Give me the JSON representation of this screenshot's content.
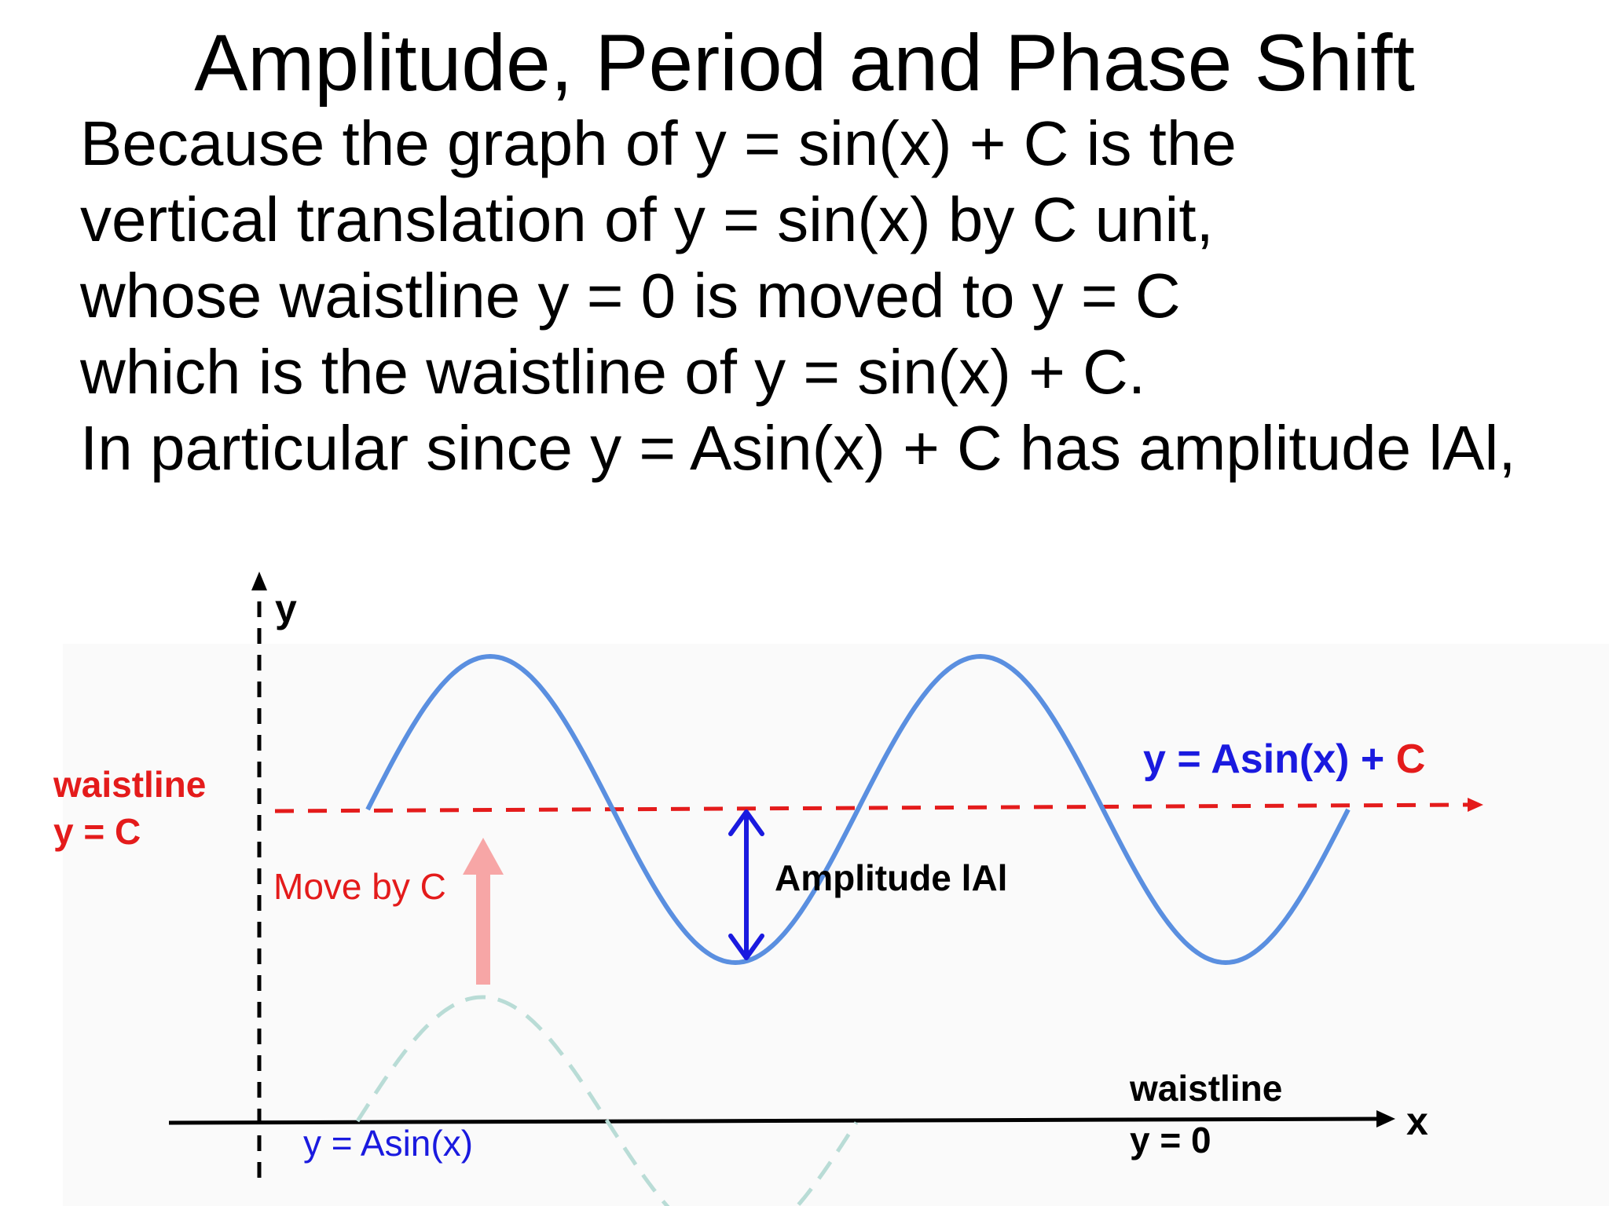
{
  "title": "Amplitude, Period and Phase Shift",
  "body_lines": [
    "Because the graph of y = sin(x) + C is the",
    "vertical translation of y = sin(x) by C unit,",
    "whose waistline y = 0 is moved to y = C",
    "which is the waistline of y = sin(x) + C.",
    "In particular since y = Asin(x) + C has amplitude lAl,"
  ],
  "diagram": {
    "y_axis_label": "y",
    "x_axis_label": "x",
    "waistline_c_line1": "waistline",
    "waistline_c_line2": "y = C",
    "move_label": "Move by C",
    "amplitude_label": "Amplitude lAl",
    "upper_curve_label_main": "y = Asin(x) + ",
    "upper_curve_label_c": "C",
    "lower_curve_label": "y = Asin(x)",
    "waistline_0_line1": "waistline",
    "waistline_0_line2": "y = 0"
  },
  "colors": {
    "red": "#e41b1b",
    "blue": "#1a1adf",
    "curve_blue": "#5a8fe0",
    "faded_curve": "#b9dcd6",
    "move_arrow": "#f7a6a6",
    "axis": "#000000"
  }
}
